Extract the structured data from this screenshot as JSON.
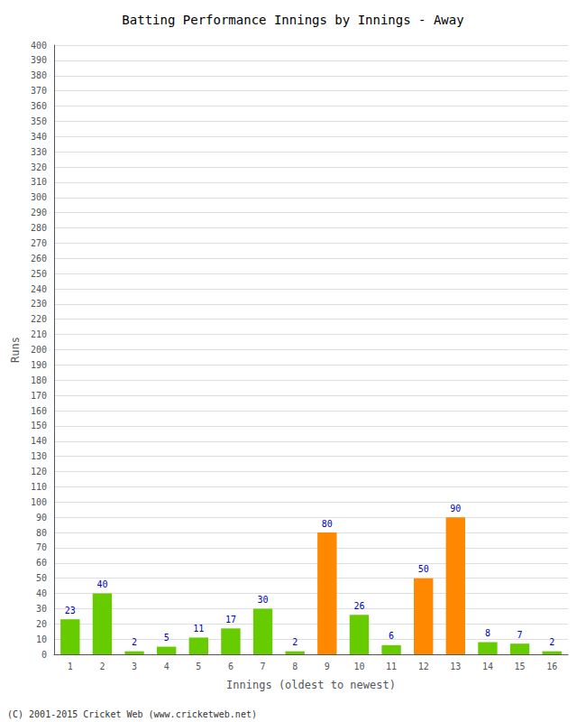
{
  "chart_data": {
    "type": "bar",
    "title": "Batting Performance Innings by Innings - Away",
    "xlabel": "Innings (oldest to newest)",
    "ylabel": "Runs",
    "categories": [
      "1",
      "2",
      "3",
      "4",
      "5",
      "6",
      "7",
      "8",
      "9",
      "10",
      "11",
      "12",
      "13",
      "14",
      "15",
      "16"
    ],
    "values": [
      23,
      40,
      2,
      5,
      11,
      17,
      30,
      2,
      80,
      26,
      6,
      50,
      90,
      8,
      7,
      2
    ],
    "colors": [
      "#66cc00",
      "#66cc00",
      "#66cc00",
      "#66cc00",
      "#66cc00",
      "#66cc00",
      "#66cc00",
      "#66cc00",
      "#ff8800",
      "#66cc00",
      "#66cc00",
      "#ff8800",
      "#ff8800",
      "#66cc00",
      "#66cc00",
      "#66cc00"
    ],
    "ylim": [
      0,
      400
    ],
    "yticks": [
      0,
      10,
      20,
      30,
      40,
      50,
      60,
      70,
      80,
      90,
      100,
      110,
      120,
      130,
      140,
      150,
      160,
      170,
      180,
      190,
      200,
      210,
      220,
      230,
      240,
      250,
      260,
      270,
      280,
      290,
      300,
      310,
      320,
      330,
      340,
      350,
      360,
      370,
      380,
      390,
      400
    ],
    "grid": true,
    "data_labels": true,
    "annotations": [
      "(C) 2001-2015 Cricket Web (www.cricketweb.net)"
    ]
  }
}
